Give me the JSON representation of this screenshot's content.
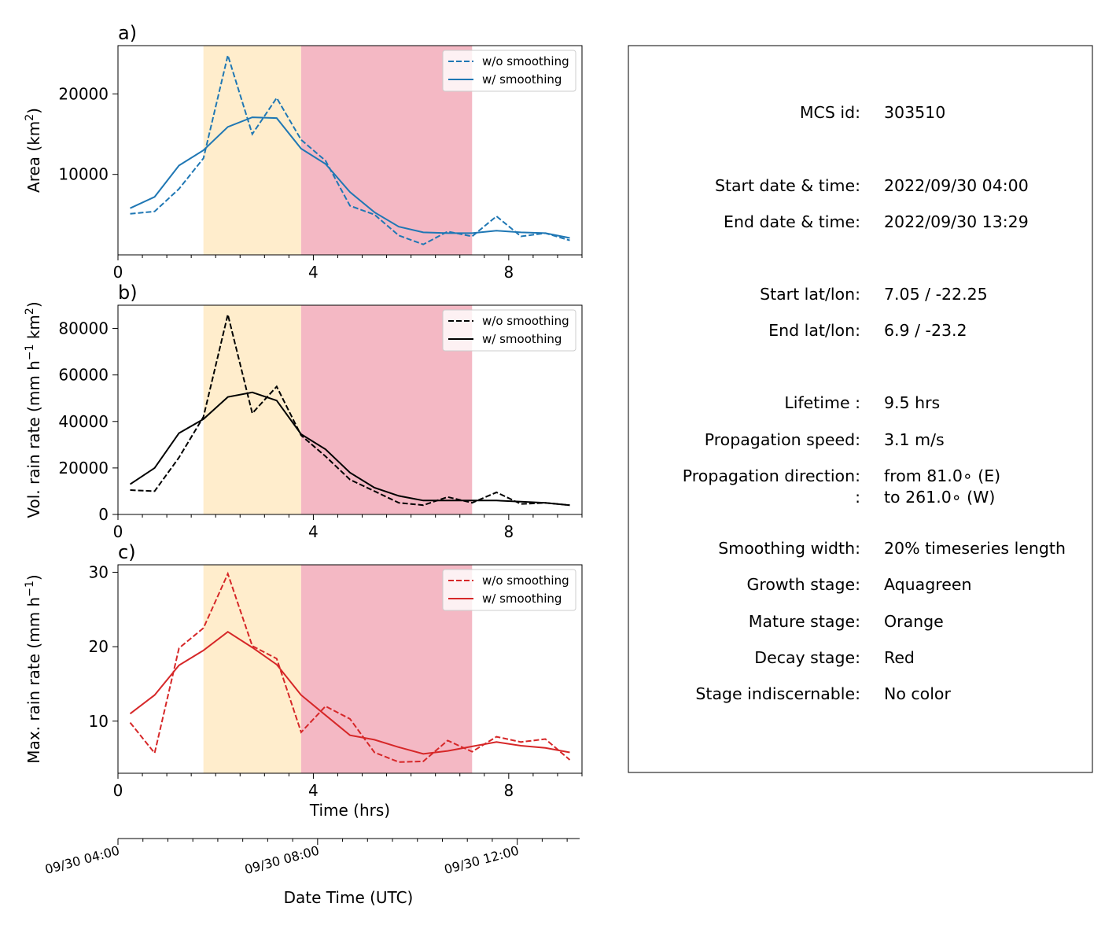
{
  "chart_data": [
    {
      "type": "line",
      "panel": "a)",
      "ylabel": "Area  (km",
      "ylabel_sup": "2",
      "ylabel_end": ")",
      "xlim": [
        0,
        9.5
      ],
      "ylim": [
        0,
        26000
      ],
      "xticks": [
        0,
        4,
        8
      ],
      "yticks": [
        10000,
        20000
      ],
      "color": "#1f77b4",
      "legend_position": "upper right",
      "series": [
        {
          "name": "w/o smoothing",
          "style": "dashed",
          "x": [
            0.25,
            0.75,
            1.25,
            1.75,
            2.25,
            2.75,
            3.25,
            3.75,
            4.25,
            4.75,
            5.25,
            5.75,
            6.25,
            6.75,
            7.25,
            7.75,
            8.25,
            8.75,
            9.25
          ],
          "y": [
            5100,
            5400,
            8200,
            12000,
            24800,
            15000,
            19500,
            14300,
            11700,
            6100,
            5000,
            2400,
            1300,
            2900,
            2300,
            4800,
            2300,
            2700,
            1800
          ]
        },
        {
          "name": "w/ smoothing",
          "style": "solid",
          "x": [
            0.25,
            0.75,
            1.25,
            1.75,
            2.25,
            2.75,
            3.25,
            3.75,
            4.25,
            4.75,
            5.25,
            5.75,
            6.25,
            6.75,
            7.25,
            7.75,
            8.25,
            8.75,
            9.25
          ],
          "y": [
            5800,
            7200,
            11100,
            13000,
            15900,
            17100,
            17000,
            13200,
            11300,
            7800,
            5300,
            3500,
            2800,
            2700,
            2700,
            3000,
            2800,
            2700,
            2100
          ]
        }
      ]
    },
    {
      "type": "line",
      "panel": "b)",
      "ylabel": "Vol. rain rate (mm h",
      "ylabel_sup": "−1",
      "ylabel_mid": " km",
      "ylabel_sup2": "2",
      "ylabel_end": ")",
      "xlim": [
        0,
        9.5
      ],
      "ylim": [
        0,
        90000
      ],
      "xticks": [
        0,
        4,
        8
      ],
      "yticks": [
        0,
        20000,
        40000,
        60000,
        80000
      ],
      "color": "#000000",
      "legend_position": "upper right",
      "series": [
        {
          "name": "w/o smoothing",
          "style": "dashed",
          "x": [
            0.25,
            0.75,
            1.25,
            1.75,
            2.25,
            2.75,
            3.25,
            3.75,
            4.25,
            4.75,
            5.25,
            5.75,
            6.25,
            6.75,
            7.25,
            7.75,
            8.25,
            8.75,
            9.25
          ],
          "y": [
            10500,
            10000,
            24500,
            42000,
            86000,
            43500,
            55000,
            34000,
            25000,
            15000,
            10000,
            5000,
            4000,
            7500,
            5000,
            9500,
            4500,
            5000,
            4000
          ]
        },
        {
          "name": "w/ smoothing",
          "style": "solid",
          "x": [
            0.25,
            0.75,
            1.25,
            1.75,
            2.25,
            2.75,
            3.25,
            3.75,
            4.25,
            4.75,
            5.25,
            5.75,
            6.25,
            6.75,
            7.25,
            7.75,
            8.25,
            8.75,
            9.25
          ],
          "y": [
            13000,
            20000,
            35000,
            41000,
            50500,
            52500,
            49000,
            34500,
            28000,
            18000,
            11500,
            8000,
            6000,
            6000,
            6000,
            6000,
            5500,
            5000,
            4000
          ]
        }
      ]
    },
    {
      "type": "line",
      "panel": "c)",
      "ylabel": "Max. rain rate  (mm h",
      "ylabel_sup": "−1",
      "ylabel_end": ")",
      "xlabel": "Time (hrs)",
      "xlim": [
        0,
        9.5
      ],
      "ylim": [
        3,
        31
      ],
      "xticks": [
        0,
        4,
        8
      ],
      "yticks": [
        10,
        20,
        30
      ],
      "color": "#d62728",
      "legend_position": "upper right",
      "series": [
        {
          "name": "w/o smoothing",
          "style": "dashed",
          "x": [
            0.25,
            0.75,
            1.25,
            1.75,
            2.25,
            2.75,
            3.25,
            3.75,
            4.25,
            4.75,
            5.25,
            5.75,
            6.25,
            6.75,
            7.25,
            7.75,
            8.25,
            8.75,
            9.25
          ],
          "y": [
            9.8,
            5.7,
            19.8,
            22.5,
            29.8,
            20.1,
            18.4,
            8.5,
            12.0,
            10.3,
            5.8,
            4.5,
            4.6,
            7.4,
            5.9,
            7.9,
            7.2,
            7.6,
            4.8
          ]
        },
        {
          "name": "w/ smoothing",
          "style": "solid",
          "x": [
            0.25,
            0.75,
            1.25,
            1.75,
            2.25,
            2.75,
            3.25,
            3.75,
            4.25,
            4.75,
            5.25,
            5.75,
            6.25,
            6.75,
            7.25,
            7.75,
            8.25,
            8.75,
            9.25
          ],
          "y": [
            11.0,
            13.5,
            17.5,
            19.5,
            22.0,
            19.9,
            17.6,
            13.5,
            10.8,
            8.1,
            7.5,
            6.5,
            5.6,
            6.0,
            6.6,
            7.2,
            6.7,
            6.4,
            5.8
          ]
        }
      ]
    }
  ],
  "stages": [
    {
      "name": "Mature",
      "start": 1.75,
      "end": 3.75,
      "color": "#ffedcc"
    },
    {
      "name": "Decay",
      "start": 3.75,
      "end": 7.25,
      "color": "#f4b8c4"
    }
  ],
  "date_axis": {
    "xlabel": "Date Time (UTC)",
    "ticks": [
      {
        "hrs": 0,
        "label": "09/30 04:00"
      },
      {
        "hrs": 4,
        "label": "09/30 08:00"
      },
      {
        "hrs": 8,
        "label": "09/30 12:00"
      }
    ],
    "minor_step_hrs": 0.5
  },
  "info": [
    {
      "key": "MCS id:",
      "value": "303510"
    },
    {
      "key": "Start date & time:",
      "value": "2022/09/30 04:00"
    },
    {
      "key": "End date & time:",
      "value": "2022/09/30 13:29"
    },
    {
      "key": "Start lat/lon:",
      "value": "7.05 / -22.25"
    },
    {
      "key": "End lat/lon:",
      "value": "6.9 / -23.2"
    },
    {
      "key": "Lifetime :",
      "value": "9.5 hrs"
    },
    {
      "key": "Propagation speed:",
      "value": "3.1 m/s"
    },
    {
      "key": "Propagation direction:",
      "value": "from  81.0∘ (E)"
    },
    {
      "key": ":",
      "value": "to   261.0∘ (W)"
    },
    {
      "key": "Smoothing width:",
      "value": "20% timeseries length"
    },
    {
      "key": "Growth stage:",
      "value": "Aquagreen"
    },
    {
      "key": "Mature stage:",
      "value": "Orange"
    },
    {
      "key": "Decay stage:",
      "value": "Red"
    },
    {
      "key": "Stage indiscernable:",
      "value": "No color"
    }
  ]
}
